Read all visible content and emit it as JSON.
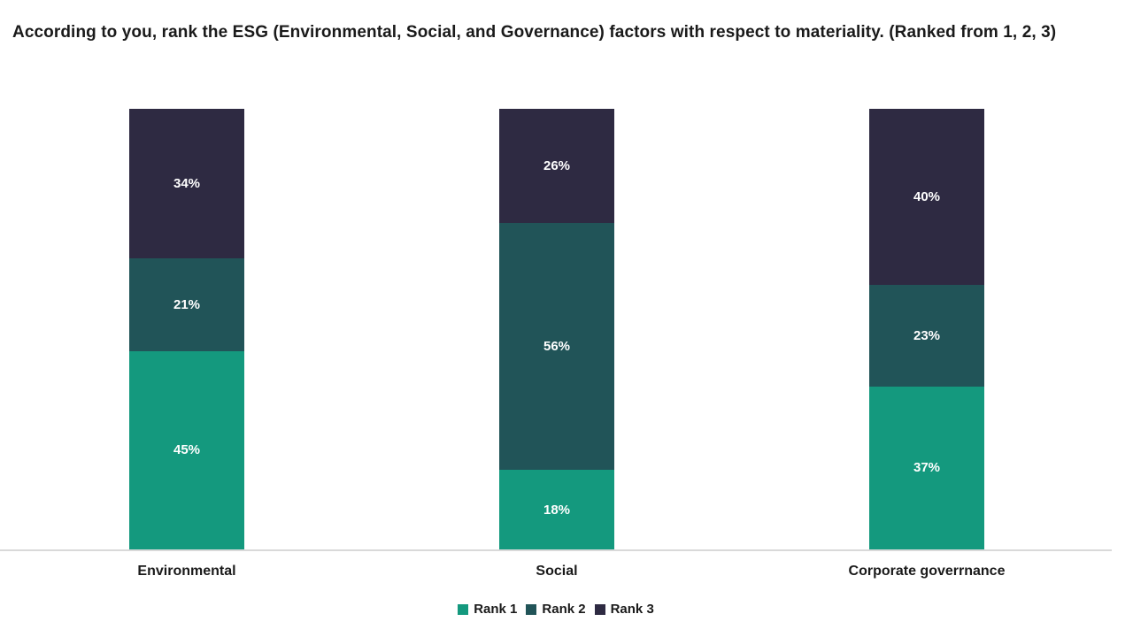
{
  "title": "According to you, rank the ESG (Environmental, Social, and Governance) factors with respect to materiality. (Ranked from 1, 2, 3)",
  "colors": {
    "rank1": "#14997E",
    "rank2": "#215458",
    "rank3": "#2E2A42",
    "axis_line": "#D9D9D9",
    "bar_label_text": "#FFFFFF",
    "title_text": "#1A1A1A"
  },
  "chart_data": {
    "type": "bar",
    "stacked": true,
    "orientation": "vertical",
    "title": "According to you, rank the ESG (Environmental, Social, and Governance) factors with respect to materiality. (Ranked from 1, 2, 3)",
    "categories": [
      "Environmental",
      "Social",
      "Corporate goverrnance"
    ],
    "series": [
      {
        "name": "Rank 1",
        "color_key": "rank1",
        "values": [
          45,
          18,
          37
        ]
      },
      {
        "name": "Rank 2",
        "color_key": "rank2",
        "values": [
          21,
          56,
          23
        ]
      },
      {
        "name": "Rank 3",
        "color_key": "rank3",
        "values": [
          34,
          26,
          40
        ]
      }
    ],
    "value_unit": "%",
    "data_labels": [
      [
        "45%",
        "18%",
        "37%"
      ],
      [
        "21%",
        "56%",
        "23%"
      ],
      [
        "34%",
        "26%",
        "40%"
      ]
    ],
    "ylim": [
      0,
      100
    ],
    "grid": false,
    "legend": [
      "Rank 1",
      "Rank 2",
      "Rank 3"
    ],
    "legend_position": "bottom"
  }
}
